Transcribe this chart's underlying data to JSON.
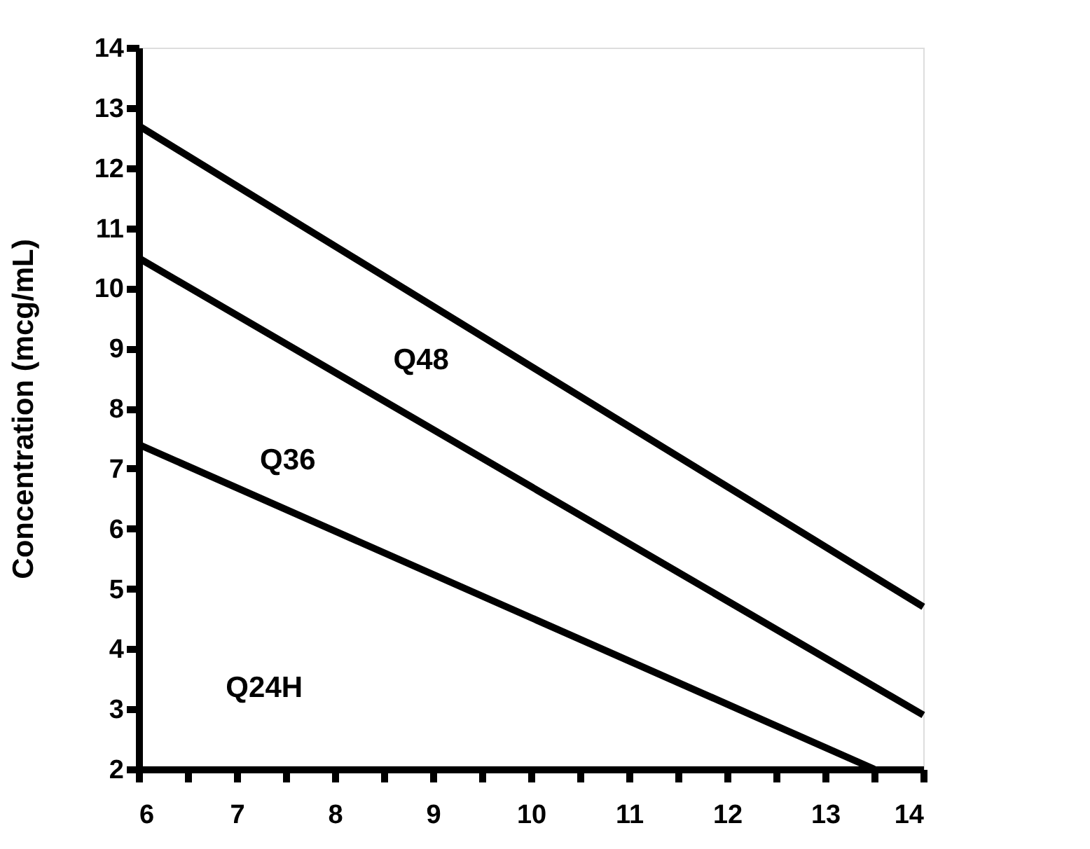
{
  "chart_data": {
    "type": "line",
    "ylabel": "Concentration (mcg/mL)",
    "xlim": [
      6,
      14
    ],
    "ylim": [
      2,
      14
    ],
    "xticks": [
      6,
      {
        "value": 6.5,
        "label": null
      },
      7,
      {
        "value": 7.5,
        "label": null
      },
      8,
      {
        "value": 8.5,
        "label": null
      },
      9,
      {
        "value": 9.5,
        "label": null
      },
      10,
      {
        "value": 10.5,
        "label": null
      },
      11,
      {
        "value": 11.5,
        "label": null
      },
      12,
      {
        "value": 12.5,
        "label": null
      },
      13,
      {
        "value": 13.5,
        "label": null
      },
      14
    ],
    "yticks": [
      2,
      3,
      4,
      5,
      6,
      7,
      8,
      9,
      10,
      11,
      12,
      13,
      14
    ],
    "series": [
      {
        "color": "#000000",
        "x": [
          6,
          14
        ],
        "values": [
          12.7,
          4.7
        ]
      },
      {
        "color": "#000000",
        "x": [
          6,
          14
        ],
        "values": [
          10.5,
          2.9
        ]
      },
      {
        "color": "#000000",
        "x": [
          6,
          13.5
        ],
        "values": [
          7.4,
          2
        ]
      }
    ],
    "annotations": [
      "Q48",
      "Q36",
      "Q24H"
    ],
    "grid": false,
    "legend": false,
    "marker": "none",
    "line_style": "solid"
  }
}
